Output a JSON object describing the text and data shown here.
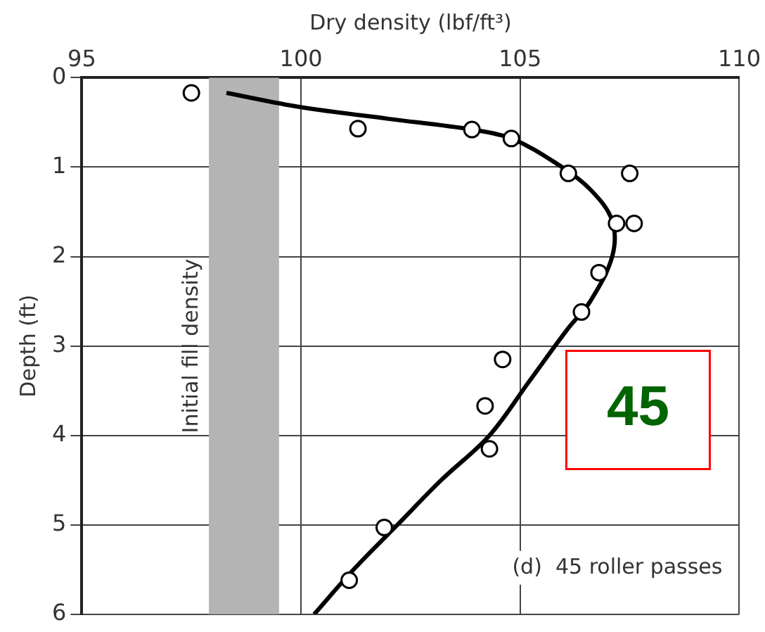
{
  "chart_data": {
    "type": "scatter",
    "xlabel": "Dry density (lbf/ft³)",
    "ylabel": "Depth (ft)",
    "xlim": [
      95,
      110
    ],
    "xticks": [
      95,
      100,
      105,
      110
    ],
    "ylim": [
      6,
      0
    ],
    "yticks": [
      0,
      1,
      2,
      3,
      4,
      5,
      6
    ],
    "grid": true,
    "marker": "circle",
    "series": [
      {
        "type": "scatter",
        "color": "#000000",
        "x": [
          97.5,
          101.3,
          103.9,
          104.8,
          106.1,
          107.5,
          107.2,
          107.6,
          106.8,
          106.4,
          104.6,
          104.2,
          104.3,
          101.9,
          101.1
        ],
        "values": [
          0.17,
          0.57,
          0.58,
          0.68,
          1.07,
          1.07,
          1.63,
          1.63,
          2.18,
          2.62,
          3.15,
          3.67,
          4.15,
          5.03,
          5.62
        ]
      },
      {
        "type": "line",
        "color": "#000000",
        "marker": "none",
        "x": [
          98.3,
          100,
          102,
          103.9,
          104.8,
          105.8,
          106.6,
          107.1,
          107.1,
          106.6,
          106.1,
          105.2,
          104.3,
          103.2,
          102.2,
          101.2,
          100.3
        ],
        "values": [
          0.17,
          0.33,
          0.46,
          0.58,
          0.68,
          0.95,
          1.25,
          1.6,
          2.0,
          2.5,
          2.8,
          3.4,
          4.0,
          4.5,
          5.0,
          5.5,
          6.0
        ]
      }
    ],
    "bands": [
      {
        "axis": "x",
        "from": 97.9,
        "to": 99.5,
        "label": "Initial fill density",
        "color": "#b4b4b4"
      }
    ],
    "annotations": [
      "(d)  45 roller passes",
      "45"
    ]
  }
}
